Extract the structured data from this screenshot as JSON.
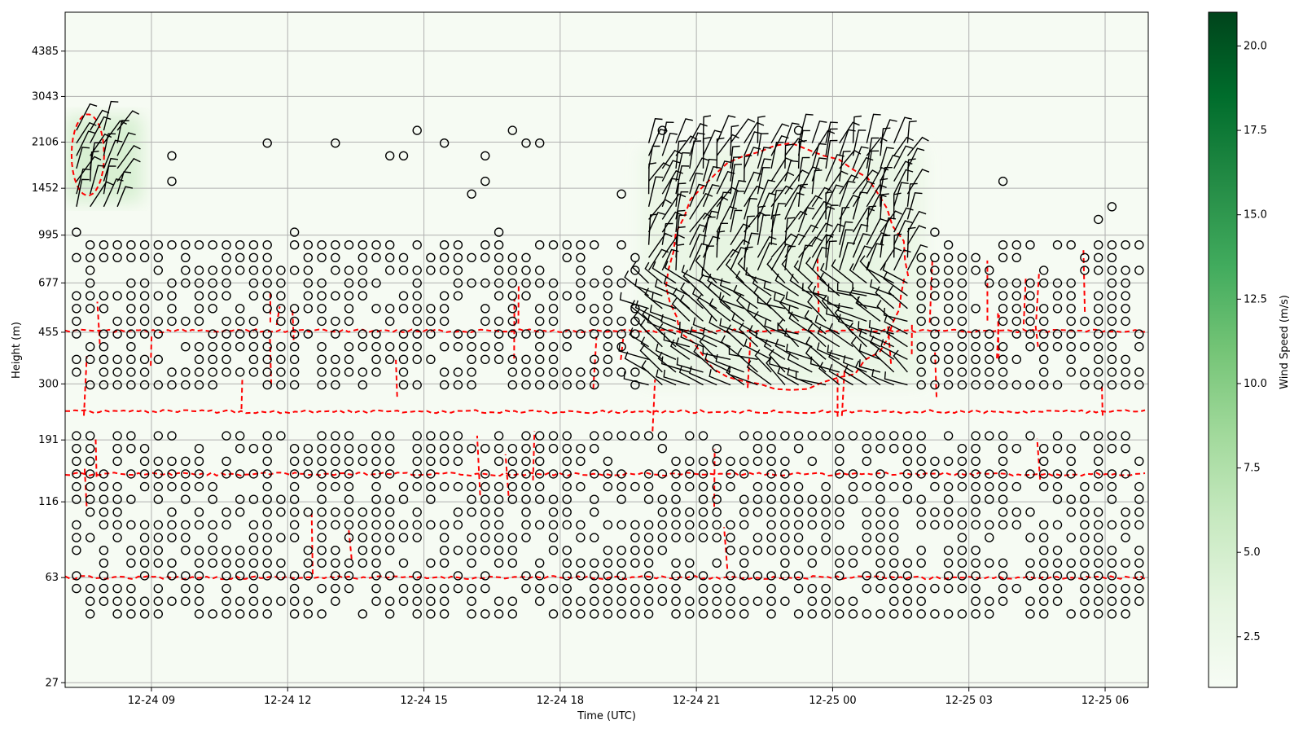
{
  "chart_data": {
    "type": "heatmap",
    "title": "",
    "xlabel": "Time (UTC)",
    "ylabel": "Height (m)",
    "x_tick_labels": [
      "12-24 09",
      "12-24 12",
      "12-24 15",
      "12-24 18",
      "12-24 21",
      "12-25 00",
      "12-25 03",
      "12-25 06"
    ],
    "x_ticks_hours": [
      9,
      12,
      15,
      18,
      21,
      24,
      27,
      30
    ],
    "xlim_hours": [
      7.1,
      30.95
    ],
    "y_scale": "log",
    "y_tick_labels": [
      "27",
      "63",
      "116",
      "191",
      "300",
      "455",
      "677",
      "995",
      "1452",
      "2106",
      "3043",
      "4385"
    ],
    "y_ticks": [
      27,
      63,
      116,
      191,
      300,
      455,
      677,
      995,
      1452,
      2106,
      3043,
      4385
    ],
    "ylim": [
      26,
      6000
    ],
    "grid": true,
    "colorbar": {
      "label": "Wind Speed (m/s)",
      "colormap": "Greens",
      "range": [
        1.0,
        21.0
      ],
      "tick_labels": [
        "2.5",
        "5.0",
        "7.5",
        "10.0",
        "12.5",
        "15.0",
        "17.5",
        "20.0"
      ],
      "ticks": [
        2.5,
        5.0,
        7.5,
        10.0,
        12.5,
        15.0,
        17.5,
        20.0
      ]
    },
    "wind_speed_field": [
      {
        "t0": 7.1,
        "t1": 8.8,
        "z0": 1300,
        "z1": 2600,
        "speed": 5.0
      },
      {
        "t0": 19.8,
        "t1": 26.0,
        "z0": 300,
        "z1": 2000,
        "speed": 3.0
      },
      {
        "t0": 21.0,
        "t1": 25.0,
        "z0": 450,
        "z1": 1500,
        "speed": 4.0
      },
      {
        "t0": 7.1,
        "t1": 30.95,
        "z0": 26,
        "z1": 6000,
        "speed": 1.2
      }
    ],
    "barbs_calm_marker": "circle",
    "barbs_regions": [
      {
        "t0": 7.1,
        "t1": 8.5,
        "z0": 1150,
        "z1": 2800
      },
      {
        "t0": 19.9,
        "t1": 25.9,
        "z0": 290,
        "z1": 2300
      }
    ],
    "contour_color": "#ff0000",
    "contour_style": "dashed",
    "contour_levels_heights": [
      63,
      145,
      240,
      460
    ]
  },
  "colors": {
    "barb": "#000000",
    "contour": "#ff0000",
    "grid": "#b0b0b0",
    "cmap_low": "#f7fcf5",
    "cmap_high": "#00441b"
  }
}
